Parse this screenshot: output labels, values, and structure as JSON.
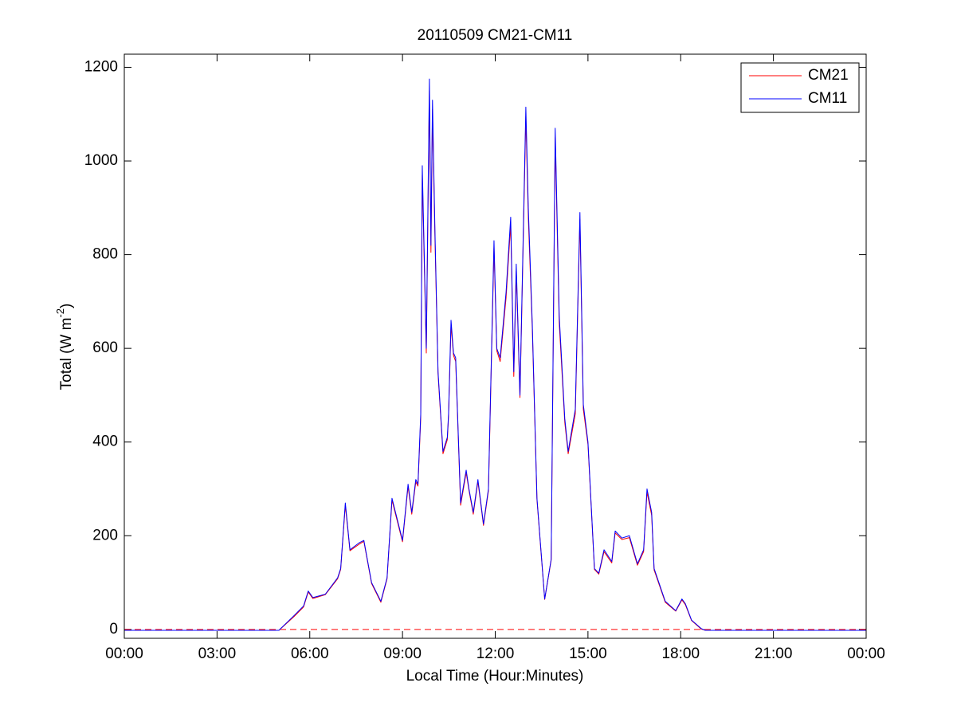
{
  "chart_data": {
    "type": "line",
    "title": "20110509 CM21-CM11",
    "xlabel": "Local Time (Hour:Minutes)",
    "ylabel": {
      "text": "Total (W m",
      "superscript": "-2",
      "suffix": ")"
    },
    "x": [
      0,
      5.0,
      5.5,
      5.8,
      5.95,
      6.1,
      6.5,
      6.9,
      7.0,
      7.15,
      7.3,
      7.6,
      7.75,
      8.0,
      8.3,
      8.5,
      8.66,
      9.0,
      9.18,
      9.3,
      9.43,
      9.5,
      9.59,
      9.64,
      9.77,
      9.87,
      9.92,
      9.97,
      10.05,
      10.15,
      10.31,
      10.45,
      10.49,
      10.57,
      10.65,
      10.72,
      10.88,
      11.06,
      11.15,
      11.29,
      11.44,
      11.62,
      11.78,
      11.96,
      12.05,
      12.16,
      12.35,
      12.5,
      12.6,
      12.68,
      12.8,
      12.99,
      13.07,
      13.2,
      13.35,
      13.6,
      13.81,
      13.94,
      14.07,
      14.25,
      14.36,
      14.59,
      14.74,
      14.85,
      15.0,
      15.21,
      15.35,
      15.52,
      15.77,
      15.88,
      16.1,
      16.34,
      16.6,
      16.8,
      16.91,
      17.06,
      17.14,
      17.5,
      17.84,
      18.04,
      18.15,
      18.35,
      18.66,
      18.8,
      24
    ],
    "series": [
      {
        "name": "CM21",
        "color": "#ff0000",
        "values": [
          -2,
          -2,
          28,
          48,
          80,
          66,
          74,
          108,
          128,
          265,
          168,
          182,
          188,
          98,
          58,
          108,
          276,
          187,
          305,
          246,
          315,
          306,
          452,
          970,
          590,
          1150,
          805,
          1110,
          835,
          545,
          375,
          405,
          455,
          650,
          585,
          572,
          265,
          335,
          297,
          246,
          316,
          222,
          296,
          815,
          595,
          572,
          708,
          865,
          540,
          765,
          495,
          1095,
          880,
          640,
          277,
          64,
          148,
          1050,
          655,
          442,
          375,
          460,
          875,
          470,
          395,
          128,
          118,
          166,
          142,
          206,
          192,
          196,
          137,
          166,
          293,
          244,
          127,
          58,
          39,
          63,
          53,
          19,
          1,
          -2,
          -2
        ]
      },
      {
        "name": "CM11",
        "color": "#0000ff",
        "values": [
          -2,
          -2,
          30,
          50,
          82,
          68,
          75,
          110,
          130,
          270,
          170,
          185,
          190,
          100,
          60,
          110,
          280,
          190,
          310,
          250,
          320,
          310,
          460,
          990,
          600,
          1175,
          820,
          1130,
          850,
          550,
          380,
          410,
          460,
          660,
          590,
          580,
          270,
          340,
          300,
          250,
          320,
          225,
          300,
          830,
          600,
          580,
          720,
          880,
          550,
          780,
          500,
          1115,
          900,
          650,
          280,
          65,
          150,
          1070,
          670,
          450,
          380,
          470,
          890,
          480,
          400,
          130,
          120,
          170,
          145,
          210,
          195,
          200,
          140,
          170,
          300,
          250,
          130,
          60,
          40,
          65,
          55,
          20,
          2,
          -2,
          -2
        ]
      }
    ],
    "reference_line": {
      "value": 0,
      "color": "#ff0000",
      "style": "dashed"
    },
    "xlim": [
      0,
      24
    ],
    "xticks": [
      {
        "value": 0,
        "label": "00:00"
      },
      {
        "value": 3,
        "label": "03:00"
      },
      {
        "value": 6,
        "label": "06:00"
      },
      {
        "value": 9,
        "label": "09:00"
      },
      {
        "value": 12,
        "label": "12:00"
      },
      {
        "value": 15,
        "label": "15:00"
      },
      {
        "value": 18,
        "label": "18:00"
      },
      {
        "value": 21,
        "label": "21:00"
      },
      {
        "value": 24,
        "label": "00:00"
      }
    ],
    "ylim": [
      -19,
      1228
    ],
    "yticks": [
      0,
      200,
      400,
      600,
      800,
      1000,
      1200
    ],
    "legend": "upper right",
    "grid": false
  }
}
